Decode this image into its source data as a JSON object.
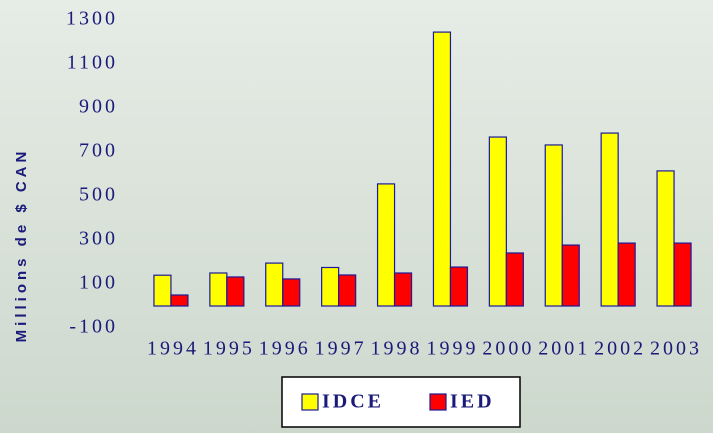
{
  "chart_data": {
    "type": "bar",
    "ylabel": "Millions de $ CAN",
    "categories": [
      "1994",
      "1995",
      "1996",
      "1997",
      "1998",
      "1999",
      "2000",
      "2001",
      "2002",
      "2003"
    ],
    "series": [
      {
        "name": "IDCE",
        "color": "#ffff00",
        "values": [
          140,
          150,
          195,
          175,
          555,
          1245,
          768,
          732,
          786,
          614
        ]
      },
      {
        "name": "IED",
        "color": "#ff0000",
        "values": [
          50,
          132,
          123,
          141,
          150,
          177,
          241,
          277,
          286,
          286
        ]
      }
    ],
    "ylim": [
      -100,
      1300
    ],
    "yticks": [
      -100,
      100,
      300,
      500,
      700,
      900,
      1100,
      1300
    ],
    "legend": "bottom"
  }
}
